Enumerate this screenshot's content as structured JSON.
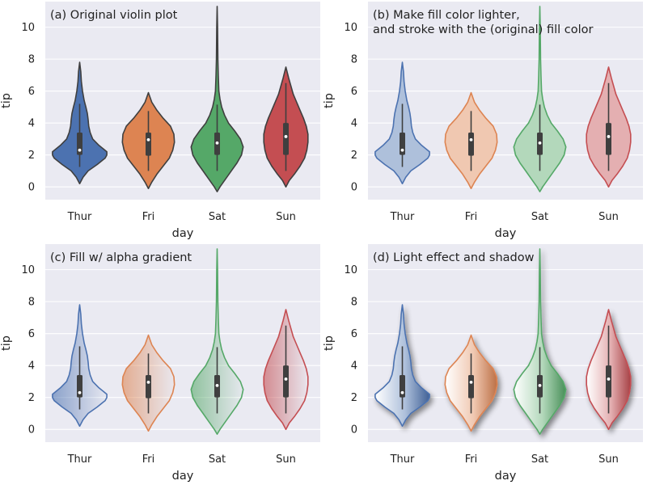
{
  "chart_data": [
    {
      "type": "violin",
      "title_lines": [
        "(a) Original violin plot"
      ],
      "style": "original",
      "xlabel": "day",
      "ylabel": "tip",
      "ylim": [
        -0.8,
        11.6
      ],
      "yticks": [
        0,
        2,
        4,
        6,
        8,
        10
      ],
      "categories": [
        "Thur",
        "Fri",
        "Sat",
        "Sun"
      ]
    },
    {
      "type": "violin",
      "title_lines": [
        "(b) Make fill color lighter,",
        "and stroke with the (original) fill color"
      ],
      "style": "lighter",
      "xlabel": "day",
      "ylabel": "tip",
      "ylim": [
        -0.8,
        11.6
      ],
      "yticks": [
        0,
        2,
        4,
        6,
        8,
        10
      ],
      "categories": [
        "Thur",
        "Fri",
        "Sat",
        "Sun"
      ]
    },
    {
      "type": "violin",
      "title_lines": [
        "(c) Fill w/ alpha gradient"
      ],
      "style": "gradient",
      "xlabel": "day",
      "ylabel": "tip",
      "ylim": [
        -0.8,
        11.6
      ],
      "yticks": [
        0,
        2,
        4,
        6,
        8,
        10
      ],
      "categories": [
        "Thur",
        "Fri",
        "Sat",
        "Sun"
      ]
    },
    {
      "type": "violin",
      "title_lines": [
        "(d) Light effect and shadow"
      ],
      "style": "light",
      "xlabel": "day",
      "ylabel": "tip",
      "ylim": [
        -0.8,
        11.6
      ],
      "yticks": [
        0,
        2,
        4,
        6,
        8,
        10
      ],
      "categories": [
        "Thur",
        "Fri",
        "Sat",
        "Sun"
      ]
    }
  ],
  "violins": [
    {
      "day": "Thur",
      "color": "#4c72b0",
      "min": 1.25,
      "q1": 2.0,
      "median": 2.3,
      "q3": 3.4,
      "whisker_high": 5.2,
      "profile": [
        [
          0.2,
          0.0
        ],
        [
          0.6,
          0.12
        ],
        [
          1.0,
          0.3
        ],
        [
          1.4,
          0.62
        ],
        [
          1.8,
          0.9
        ],
        [
          2.0,
          0.96
        ],
        [
          2.2,
          0.96
        ],
        [
          2.6,
          0.68
        ],
        [
          3.0,
          0.46
        ],
        [
          3.4,
          0.37
        ],
        [
          3.8,
          0.32
        ],
        [
          4.2,
          0.3
        ],
        [
          4.6,
          0.27
        ],
        [
          5.0,
          0.22
        ],
        [
          5.4,
          0.16
        ],
        [
          6.0,
          0.1
        ],
        [
          6.6,
          0.06
        ],
        [
          7.2,
          0.04
        ],
        [
          7.8,
          0.0
        ]
      ]
    },
    {
      "day": "Fri",
      "color": "#dd8452",
      "min": 1.0,
      "q1": 1.95,
      "median": 2.95,
      "q3": 3.4,
      "whisker_high": 4.75,
      "profile": [
        [
          -0.1,
          0.0
        ],
        [
          0.3,
          0.12
        ],
        [
          0.8,
          0.3
        ],
        [
          1.3,
          0.52
        ],
        [
          1.8,
          0.74
        ],
        [
          2.3,
          0.86
        ],
        [
          2.8,
          0.92
        ],
        [
          3.3,
          0.9
        ],
        [
          3.8,
          0.78
        ],
        [
          4.3,
          0.52
        ],
        [
          4.8,
          0.3
        ],
        [
          5.3,
          0.12
        ],
        [
          5.9,
          0.0
        ]
      ]
    },
    {
      "day": "Sat",
      "color": "#55a868",
      "min": 1.0,
      "q1": 2.0,
      "median": 2.75,
      "q3": 3.4,
      "whisker_high": 5.15,
      "profile": [
        [
          -0.3,
          0.0
        ],
        [
          0.0,
          0.1
        ],
        [
          0.5,
          0.3
        ],
        [
          1.0,
          0.5
        ],
        [
          1.5,
          0.7
        ],
        [
          2.0,
          0.86
        ],
        [
          2.5,
          0.92
        ],
        [
          3.0,
          0.82
        ],
        [
          3.5,
          0.62
        ],
        [
          4.0,
          0.4
        ],
        [
          4.5,
          0.26
        ],
        [
          5.0,
          0.16
        ],
        [
          5.5,
          0.1
        ],
        [
          6.0,
          0.06
        ],
        [
          7.0,
          0.04
        ],
        [
          8.0,
          0.025
        ],
        [
          9.0,
          0.02
        ],
        [
          10.0,
          0.015
        ],
        [
          11.3,
          0.0
        ]
      ]
    },
    {
      "day": "Sun",
      "color": "#c44e52",
      "min": 1.0,
      "q1": 2.0,
      "median": 3.15,
      "q3": 4.0,
      "whisker_high": 6.5,
      "profile": [
        [
          0.0,
          0.0
        ],
        [
          0.4,
          0.12
        ],
        [
          0.8,
          0.3
        ],
        [
          1.3,
          0.5
        ],
        [
          1.8,
          0.66
        ],
        [
          2.3,
          0.74
        ],
        [
          2.8,
          0.78
        ],
        [
          3.3,
          0.78
        ],
        [
          3.8,
          0.72
        ],
        [
          4.3,
          0.62
        ],
        [
          4.8,
          0.5
        ],
        [
          5.3,
          0.38
        ],
        [
          5.8,
          0.26
        ],
        [
          6.3,
          0.18
        ],
        [
          6.8,
          0.1
        ],
        [
          7.5,
          0.0
        ]
      ]
    }
  ]
}
